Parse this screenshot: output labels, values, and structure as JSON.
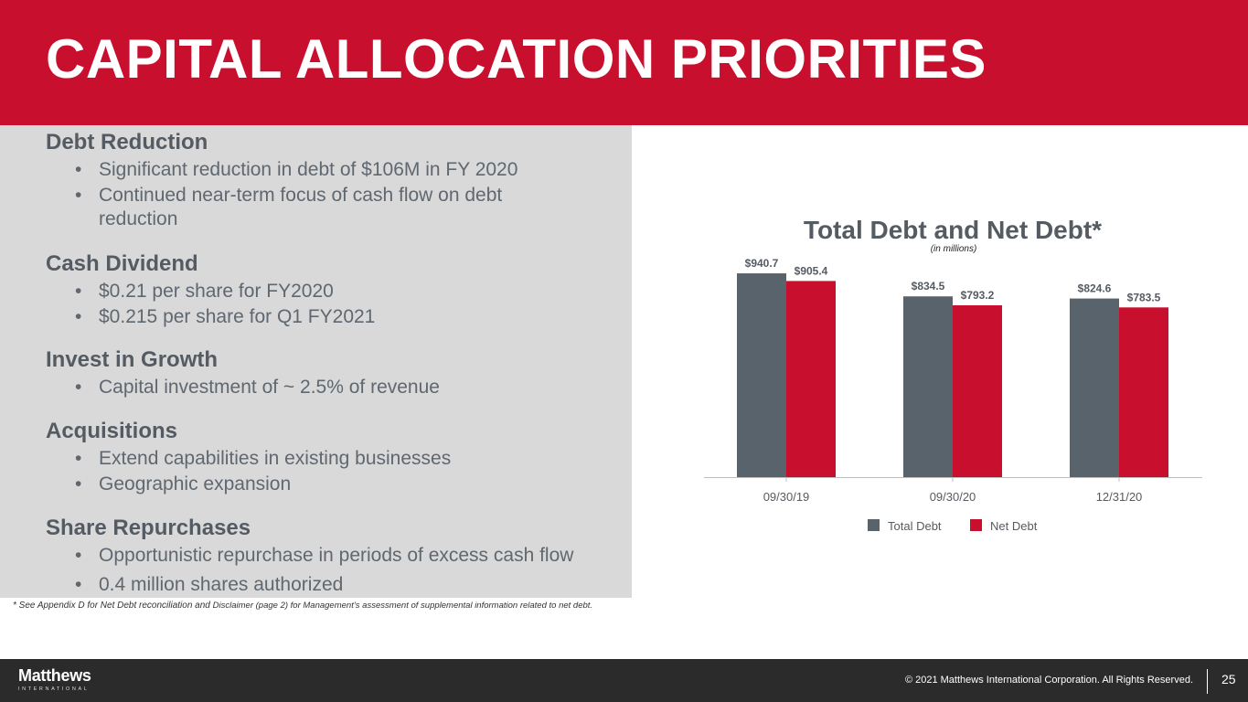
{
  "header": {
    "title": "CAPITAL ALLOCATION PRIORITIES"
  },
  "colors": {
    "brand_red": "#c8102e",
    "total_debt": "#59636c",
    "net_debt": "#c8102e",
    "panel_gray": "#d9d9d9"
  },
  "sections": [
    {
      "title": "Debt Reduction",
      "bullets": [
        "Significant reduction in debt of $106M in FY 2020",
        "Continued near-term focus of cash flow on debt",
        "reduction"
      ]
    },
    {
      "title": "Cash Dividend",
      "bullets": [
        "$0.21 per share for FY2020",
        "$0.215 per share for Q1 FY2021"
      ]
    },
    {
      "title": "Invest in Growth",
      "bullets": [
        "Capital investment of ~ 2.5% of revenue"
      ]
    },
    {
      "title": "Acquisitions",
      "bullets": [
        "Extend capabilities in existing businesses",
        "Geographic expansion"
      ]
    },
    {
      "title": "Share Repurchases",
      "bullets": [
        "Opportunistic repurchase in periods of excess cash flow",
        "0.4 million shares authorized"
      ]
    }
  ],
  "footnote": {
    "part1": "* See Appendix D for Net Debt reconciliation and ",
    "part2": "Disclaimer (page 2) for Management’s assessment of supplemental information related to net debt."
  },
  "footer": {
    "logo_word": "Matthews",
    "logo_sub": "INTERNATIONAL",
    "copyright": "© 2021 Matthews International Corporation. All Rights Reserved.",
    "page": "25"
  },
  "chart_data": {
    "type": "bar",
    "title": "Total Debt and Net Debt*",
    "subtitle": "(in millions)",
    "categories": [
      "09/30/19",
      "09/30/20",
      "12/31/20"
    ],
    "series": [
      {
        "name": "Total Debt",
        "values": [
          940.7,
          834.5,
          824.6
        ],
        "labels": [
          "$940.7",
          "$834.5",
          "$824.6"
        ],
        "color": "#59636c"
      },
      {
        "name": "Net Debt",
        "values": [
          905.4,
          793.2,
          783.5
        ],
        "labels": [
          "$905.4",
          "$793.2",
          "$783.5"
        ],
        "color": "#c8102e"
      }
    ],
    "ylim": [
      0,
      1000
    ],
    "grid": false,
    "legend": "bottom"
  }
}
